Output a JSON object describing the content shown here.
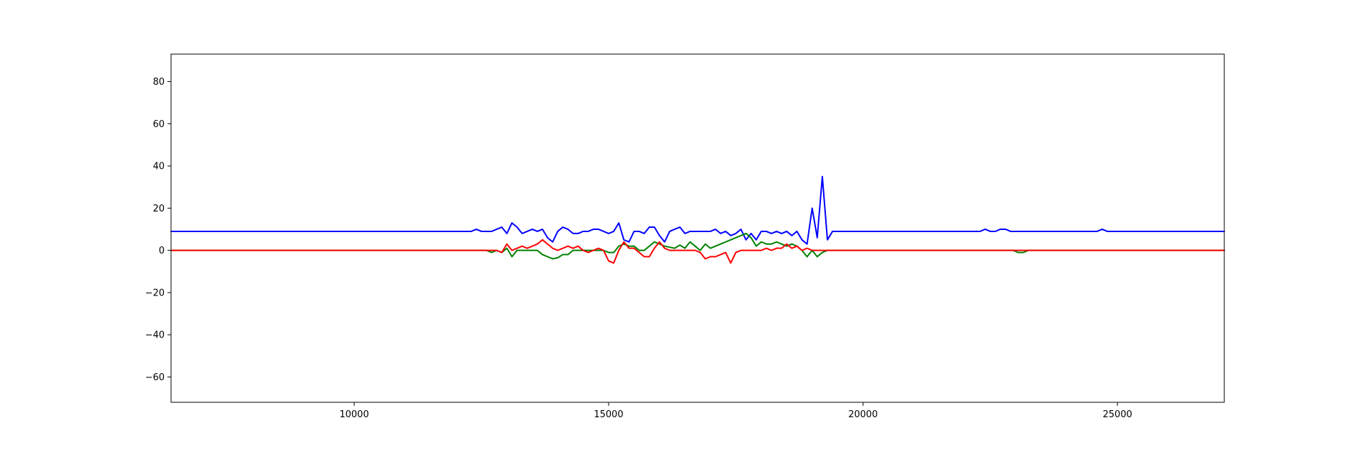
{
  "chart_data": {
    "type": "line",
    "xlim": [
      6400,
      27100
    ],
    "ylim": [
      -72,
      93
    ],
    "xticks": [
      10000,
      15000,
      20000,
      25000
    ],
    "yticks": [
      -60,
      -40,
      -20,
      0,
      20,
      40,
      60,
      80
    ],
    "grid": false,
    "series": [
      {
        "color": "#0000ff",
        "x": [
          6400,
          12300,
          12400,
          12500,
          12600,
          12700,
          12800,
          12900,
          13000,
          13100,
          13200,
          13300,
          13400,
          13500,
          13600,
          13700,
          13800,
          13900,
          14000,
          14100,
          14200,
          14300,
          14400,
          14500,
          14600,
          14700,
          14800,
          14900,
          15000,
          15100,
          15200,
          15300,
          15400,
          15500,
          15600,
          15700,
          15800,
          15900,
          16000,
          16100,
          16200,
          16300,
          16400,
          16500,
          16600,
          16700,
          16800,
          16900,
          17000,
          17100,
          17200,
          17300,
          17400,
          17500,
          17600,
          17700,
          17800,
          17900,
          18000,
          18100,
          18200,
          18300,
          18400,
          18500,
          18600,
          18700,
          18800,
          18900,
          19000,
          19100,
          19200,
          19300,
          19400,
          19500,
          22300,
          22400,
          22500,
          22600,
          22700,
          22800,
          22900,
          23000,
          24600,
          24700,
          24800,
          27100
        ],
        "y": [
          9,
          9,
          10,
          9,
          9,
          9,
          10,
          11,
          8,
          13,
          11,
          8,
          9,
          10,
          9,
          10,
          6,
          4,
          9,
          11,
          10,
          8,
          8,
          9,
          9,
          10,
          10,
          9,
          8,
          9,
          13,
          5,
          4,
          9,
          9,
          8,
          11,
          11,
          7,
          4,
          9,
          10,
          11,
          8,
          9,
          9,
          9,
          9,
          9,
          10,
          8,
          9,
          7,
          8,
          10,
          5,
          8,
          5,
          9,
          9,
          8,
          9,
          8,
          9,
          7,
          9,
          5,
          3,
          20,
          6,
          35,
          5,
          9,
          9,
          9,
          10,
          9,
          9,
          10,
          10,
          9,
          9,
          9,
          10,
          9,
          9
        ]
      },
      {
        "color": "#008000",
        "x": [
          6400,
          12600,
          12700,
          12800,
          12900,
          13000,
          13100,
          13200,
          13300,
          13400,
          13500,
          13600,
          13700,
          13800,
          13900,
          14000,
          14100,
          14200,
          14300,
          14400,
          14500,
          14600,
          14700,
          14800,
          14900,
          15000,
          15100,
          15200,
          15300,
          15400,
          15500,
          15600,
          15700,
          15800,
          15900,
          16000,
          16100,
          16200,
          16300,
          16400,
          16500,
          16600,
          16700,
          16800,
          16900,
          17000,
          17100,
          17200,
          17300,
          17400,
          17500,
          17600,
          17700,
          17800,
          17900,
          18000,
          18100,
          18200,
          18300,
          18400,
          18500,
          18600,
          18700,
          18800,
          18900,
          19000,
          19100,
          19200,
          19300,
          19400,
          22950,
          23050,
          23150,
          23250,
          27100
        ],
        "y": [
          0,
          0,
          -1,
          0,
          -1,
          1,
          -3,
          0,
          0,
          0,
          0,
          0,
          -2,
          -3,
          -4,
          -3.5,
          -2,
          -2,
          0,
          0,
          0,
          0,
          0,
          0,
          0,
          -1,
          -1,
          2,
          3,
          2,
          2,
          0,
          0,
          2,
          4,
          3,
          2,
          1.5,
          1,
          2.5,
          1,
          4,
          2,
          0,
          3,
          1,
          2,
          3,
          4,
          5,
          6,
          7,
          8,
          6,
          2,
          4,
          3,
          3,
          4,
          3,
          2,
          3,
          2,
          0,
          -3,
          0,
          -3,
          -1,
          0,
          0,
          0,
          -1,
          -1,
          0,
          0
        ]
      },
      {
        "color": "#ff0000",
        "x": [
          6400,
          12600,
          12700,
          12800,
          12900,
          13000,
          13100,
          13200,
          13300,
          13400,
          13500,
          13600,
          13700,
          13800,
          13900,
          14000,
          14100,
          14200,
          14300,
          14400,
          14500,
          14600,
          14700,
          14800,
          14900,
          15000,
          15100,
          15200,
          15300,
          15400,
          15500,
          15600,
          15700,
          15800,
          15900,
          16000,
          16100,
          16200,
          16300,
          16400,
          16500,
          16600,
          16700,
          16800,
          16900,
          17000,
          17100,
          17200,
          17300,
          17400,
          17500,
          17600,
          17700,
          17800,
          17900,
          18000,
          18100,
          18200,
          18300,
          18400,
          18500,
          18600,
          18700,
          18800,
          18900,
          19000,
          19100,
          19200,
          19300,
          19400,
          27100
        ],
        "y": [
          0,
          0,
          0,
          0,
          -1,
          3,
          0,
          1,
          2,
          1,
          2,
          3,
          5,
          3,
          1,
          0,
          1,
          2,
          1,
          2,
          0,
          -1,
          0,
          1,
          0,
          -5,
          -6,
          0,
          4,
          1,
          1,
          -1,
          -3,
          -3,
          1,
          4,
          1,
          0,
          0,
          0,
          0,
          0,
          0,
          -1,
          -4,
          -3,
          -3,
          -2,
          -1,
          -6,
          -1,
          0,
          0,
          0,
          0,
          0,
          1,
          0,
          1,
          1,
          3,
          1,
          2,
          0,
          1,
          0,
          0,
          0,
          0,
          0,
          0
        ]
      }
    ]
  }
}
